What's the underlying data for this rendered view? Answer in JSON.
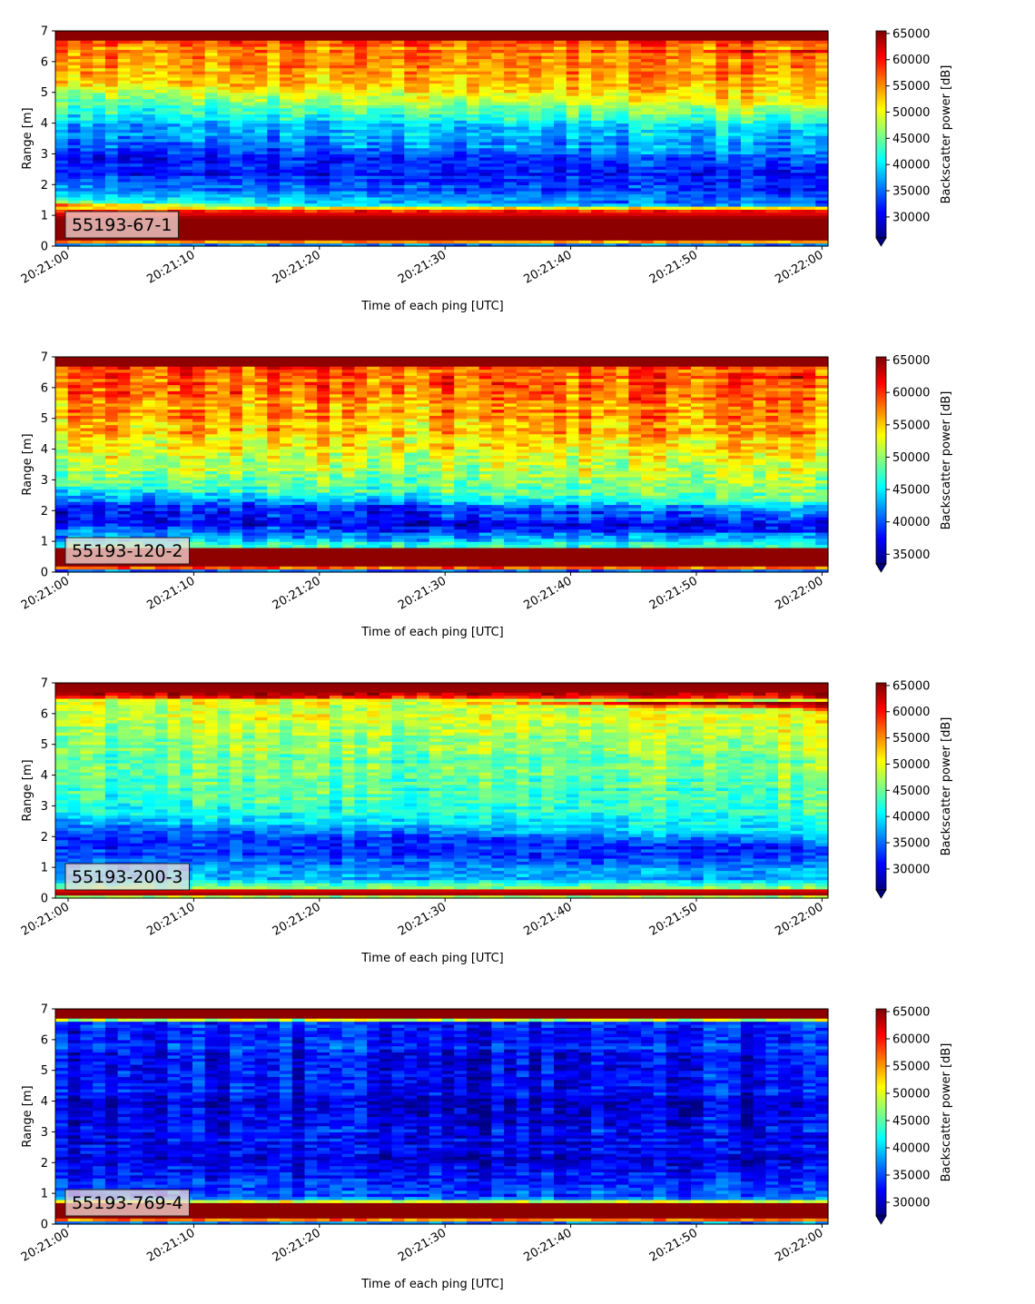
{
  "chart_data": [
    {
      "type": "heatmap",
      "id_label": "55193-67-1",
      "xlabel": "Time of each ping [UTC]",
      "ylabel": "Range [m]",
      "xticks": [
        "20:21:00",
        "20:21:10",
        "20:21:20",
        "20:21:30",
        "20:21:40",
        "20:21:50",
        "20:22:00"
      ],
      "yticks": [
        0,
        1,
        2,
        3,
        4,
        5,
        6,
        7
      ],
      "ylim": [
        0,
        7
      ],
      "colorbar": {
        "label": "Backscatter power [dB]",
        "ticks": [
          30000,
          35000,
          40000,
          45000,
          50000,
          55000,
          60000,
          65000
        ],
        "range": [
          26000,
          65500
        ],
        "extend": "min",
        "colormap": "jet"
      },
      "profile": [
        {
          "r": 0.0,
          "v": 26500
        },
        {
          "r": 0.2,
          "v": 65000
        },
        {
          "r": 0.9,
          "v": 65000
        },
        {
          "r": 1.15,
          "v": 60000
        },
        {
          "r": 1.35,
          "v": 42000
        },
        {
          "r": 1.7,
          "v": 36000
        },
        {
          "r": 2.2,
          "v": 32000
        },
        {
          "r": 2.8,
          "v": 31500
        },
        {
          "r": 3.4,
          "v": 37000
        },
        {
          "r": 4.0,
          "v": 39000
        },
        {
          "r": 4.6,
          "v": 45000
        },
        {
          "r": 5.2,
          "v": 52000
        },
        {
          "r": 6.0,
          "v": 55000
        },
        {
          "r": 6.6,
          "v": 56000
        },
        {
          "r": 6.75,
          "v": 65000
        },
        {
          "r": 7.0,
          "v": 65000
        }
      ]
    },
    {
      "type": "heatmap",
      "id_label": "55193-120-2",
      "xlabel": "Time of each ping [UTC]",
      "ylabel": "Range [m]",
      "xticks": [
        "20:21:00",
        "20:21:10",
        "20:21:20",
        "20:21:30",
        "20:21:40",
        "20:21:50",
        "20:22:00"
      ],
      "yticks": [
        0,
        1,
        2,
        3,
        4,
        5,
        6,
        7
      ],
      "ylim": [
        0,
        7
      ],
      "colorbar": {
        "label": "Backscatter power [dB]",
        "ticks": [
          35000,
          40000,
          45000,
          50000,
          55000,
          60000,
          65000
        ],
        "range": [
          33500,
          65500
        ],
        "extend": "min",
        "colormap": "jet"
      },
      "profile": [
        {
          "r": 0.0,
          "v": 34000
        },
        {
          "r": 0.2,
          "v": 65000
        },
        {
          "r": 0.75,
          "v": 65000
        },
        {
          "r": 0.85,
          "v": 47000
        },
        {
          "r": 1.0,
          "v": 45000
        },
        {
          "r": 1.3,
          "v": 40000
        },
        {
          "r": 1.7,
          "v": 37000
        },
        {
          "r": 2.2,
          "v": 40000
        },
        {
          "r": 2.7,
          "v": 48000
        },
        {
          "r": 3.3,
          "v": 51000
        },
        {
          "r": 4.0,
          "v": 53000
        },
        {
          "r": 5.0,
          "v": 56000
        },
        {
          "r": 6.0,
          "v": 58000
        },
        {
          "r": 6.6,
          "v": 58500
        },
        {
          "r": 6.75,
          "v": 65000
        },
        {
          "r": 7.0,
          "v": 65000
        }
      ]
    },
    {
      "type": "heatmap",
      "id_label": "55193-200-3",
      "xlabel": "Time of each ping [UTC]",
      "ylabel": "Range [m]",
      "xticks": [
        "20:21:00",
        "20:21:10",
        "20:21:20",
        "20:21:30",
        "20:21:40",
        "20:21:50",
        "20:22:00"
      ],
      "yticks": [
        0,
        1,
        2,
        3,
        4,
        5,
        6,
        7
      ],
      "ylim": [
        0,
        7
      ],
      "colorbar": {
        "label": "Backscatter power [dB]",
        "ticks": [
          30000,
          35000,
          40000,
          45000,
          50000,
          55000,
          60000,
          65000
        ],
        "range": [
          26000,
          65500
        ],
        "extend": "min",
        "colormap": "jet"
      },
      "profile": [
        {
          "r": 0.0,
          "v": 28000
        },
        {
          "r": 0.1,
          "v": 65000
        },
        {
          "r": 0.25,
          "v": 62000
        },
        {
          "r": 0.35,
          "v": 45000
        },
        {
          "r": 0.6,
          "v": 38000
        },
        {
          "r": 1.0,
          "v": 36000
        },
        {
          "r": 1.5,
          "v": 33000
        },
        {
          "r": 2.0,
          "v": 33000
        },
        {
          "r": 2.5,
          "v": 40000
        },
        {
          "r": 3.2,
          "v": 43000
        },
        {
          "r": 4.0,
          "v": 44000
        },
        {
          "r": 5.0,
          "v": 46000
        },
        {
          "r": 6.0,
          "v": 49000
        },
        {
          "r": 6.45,
          "v": 50000
        },
        {
          "r": 6.6,
          "v": 64000
        },
        {
          "r": 7.0,
          "v": 65000
        }
      ]
    },
    {
      "type": "heatmap",
      "id_label": "55193-769-4",
      "xlabel": "Time of each ping [UTC]",
      "ylabel": "Range [m]",
      "xticks": [
        "20:21:00",
        "20:21:10",
        "20:21:20",
        "20:21:30",
        "20:21:40",
        "20:21:50",
        "20:22:00"
      ],
      "yticks": [
        0,
        1,
        2,
        3,
        4,
        5,
        6,
        7
      ],
      "ylim": [
        0,
        7
      ],
      "colorbar": {
        "label": "Backscatter power [dB]",
        "ticks": [
          30000,
          35000,
          40000,
          45000,
          50000,
          55000,
          60000,
          65000
        ],
        "range": [
          27500,
          65500
        ],
        "extend": "min",
        "colormap": "jet"
      },
      "profile": [
        {
          "r": 0.0,
          "v": 29000
        },
        {
          "r": 0.2,
          "v": 65000
        },
        {
          "r": 0.7,
          "v": 65000
        },
        {
          "r": 0.8,
          "v": 36000
        },
        {
          "r": 1.2,
          "v": 34000
        },
        {
          "r": 2.0,
          "v": 31000
        },
        {
          "r": 3.0,
          "v": 32000
        },
        {
          "r": 4.0,
          "v": 31000
        },
        {
          "r": 5.0,
          "v": 32500
        },
        {
          "r": 6.0,
          "v": 33000
        },
        {
          "r": 6.6,
          "v": 34000
        },
        {
          "r": 6.7,
          "v": 65000
        },
        {
          "r": 7.0,
          "v": 65000
        }
      ]
    }
  ]
}
